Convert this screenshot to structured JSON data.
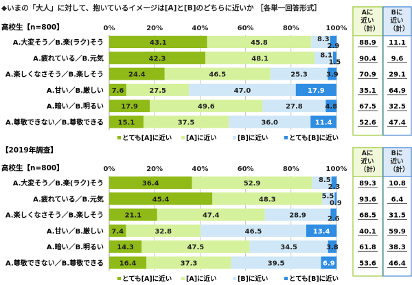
{
  "title": "◆いまの「大人」に対して、抱いているイメージは[A]と[B]のどちらに近いか ［各単一回答形式］",
  "colors": {
    "very_a": "#8fba18",
    "a": "#d6f19c",
    "b": "#cfe7f7",
    "very_b": "#2f8de2",
    "col_a_border": "#9cc83a",
    "col_a_bg": "#f1f8d9",
    "col_b_border": "#4a88d6",
    "col_b_bg": "#dbe9f8"
  },
  "chart_data": [
    {
      "type": "bar",
      "orientation": "horizontal-stacked-100",
      "section_label": "",
      "sample_label": "高校生【n=800】",
      "xlim": [
        0,
        100
      ],
      "x_ticks": [
        "0%",
        "20%",
        "40%",
        "60%",
        "80%",
        "100%"
      ],
      "grid": true,
      "legend_position": "bottom",
      "categories": [
        "A.大変そう／B.楽(ラク)そう",
        "A.疲れている／B.元気",
        "A.楽しくなさそう／B.楽しそう",
        "A.甘い／B.厳しい",
        "A.暗い／B.明るい",
        "A.尊敬できない／B.尊敬できる"
      ],
      "series": [
        {
          "name": "とても[A]に近い",
          "values": [
            43.1,
            42.3,
            24.4,
            7.6,
            17.9,
            15.1
          ]
        },
        {
          "name": "[A]に近い",
          "values": [
            45.8,
            48.1,
            46.5,
            27.5,
            49.6,
            37.5
          ]
        },
        {
          "name": "[B]に近い",
          "values": [
            8.3,
            8.1,
            25.3,
            47.0,
            27.8,
            36.0
          ]
        },
        {
          "name": "とても[B]に近い",
          "values": [
            2.9,
            1.5,
            3.9,
            17.9,
            4.8,
            11.4
          ]
        }
      ],
      "totals": {
        "a_header": "Aに近い（計）",
        "b_header": "Bに近い（計）",
        "a_values": [
          "88.9",
          "90.4",
          "70.9",
          "35.1",
          "67.5",
          "52.6"
        ],
        "b_values": [
          "11.1",
          "9.6",
          "29.1",
          "64.9",
          "32.5",
          "47.4"
        ]
      }
    },
    {
      "type": "bar",
      "orientation": "horizontal-stacked-100",
      "section_label": "【2019年調査】",
      "sample_label": "高校生【n=800】",
      "xlim": [
        0,
        100
      ],
      "x_ticks": [
        "0%",
        "20%",
        "40%",
        "60%",
        "80%",
        "100%"
      ],
      "grid": true,
      "legend_position": "bottom",
      "categories": [
        "A.大変そう／B.楽(ラク)そう",
        "A.疲れている／B.元気",
        "A.楽しくなさそう／B.楽しそう",
        "A.甘い／B.厳しい",
        "A.暗い／B.明るい",
        "A.尊敬できない／B.尊敬できる"
      ],
      "series": [
        {
          "name": "とても[A]に近い",
          "values": [
            36.4,
            45.4,
            21.1,
            7.4,
            14.3,
            16.4
          ]
        },
        {
          "name": "[A]に近い",
          "values": [
            52.9,
            48.3,
            47.4,
            32.8,
            47.5,
            37.3
          ]
        },
        {
          "name": "[B]に近い",
          "values": [
            8.5,
            5.5,
            28.9,
            46.5,
            34.5,
            39.5
          ]
        },
        {
          "name": "とても[B]に近い",
          "values": [
            2.3,
            0.9,
            2.6,
            13.4,
            3.8,
            6.9
          ]
        }
      ],
      "totals": {
        "a_header": "Aに近い（計）",
        "b_header": "Bに近い（計）",
        "a_values": [
          "89.3",
          "93.6",
          "68.5",
          "40.1",
          "61.8",
          "53.6"
        ],
        "b_values": [
          "10.8",
          "6.4",
          "31.5",
          "59.9",
          "38.3",
          "46.4"
        ]
      }
    }
  ]
}
